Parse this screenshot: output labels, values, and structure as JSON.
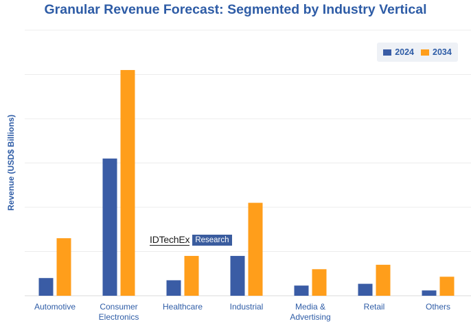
{
  "chart_data": {
    "type": "bar",
    "title": "Granular Revenue Forecast: Segmented by Industry Vertical",
    "xlabel": "",
    "ylabel": "Revenue (USD$ Billions)",
    "categories": [
      "Automotive",
      "Consumer Electronics",
      "Healthcare",
      "Industrial",
      "Media & Advertising",
      "Retail",
      "Others"
    ],
    "category_lines": [
      [
        "Automotive"
      ],
      [
        "Consumer",
        "Electronics"
      ],
      [
        "Healthcare"
      ],
      [
        "Industrial"
      ],
      [
        "Media &",
        "Advertising"
      ],
      [
        "Retail"
      ],
      [
        "Others"
      ]
    ],
    "series": [
      {
        "name": "2024",
        "color": "#3A5CA5",
        "values": [
          0.4,
          3.1,
          0.35,
          0.9,
          0.23,
          0.27,
          0.12
        ]
      },
      {
        "name": "2034",
        "color": "#FF9E1B",
        "values": [
          1.3,
          5.1,
          0.9,
          2.1,
          0.6,
          0.7,
          0.43
        ]
      }
    ],
    "ylim": [
      0,
      6
    ],
    "yticks_shown": false,
    "grid": true,
    "legend_position": "top-right"
  },
  "watermark": {
    "brand": "IDTechEx",
    "badge": "Research"
  }
}
